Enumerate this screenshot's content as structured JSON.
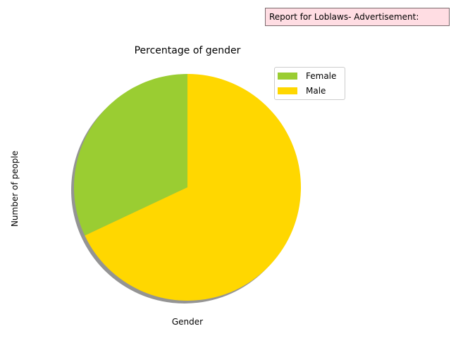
{
  "report": {
    "text": "Report for Loblaws- Advertisement:"
  },
  "chart_data": {
    "type": "pie",
    "title": "Percentage of gender",
    "xlabel": "Gender",
    "ylabel": "Number of people",
    "categories": [
      "Female",
      "Male"
    ],
    "values": [
      32,
      68
    ],
    "colors": [
      "#9acd32",
      "#ffd700"
    ],
    "start_angle": 90,
    "direction": "counterclockwise",
    "shadow": true,
    "legend_position": "upper-right"
  }
}
